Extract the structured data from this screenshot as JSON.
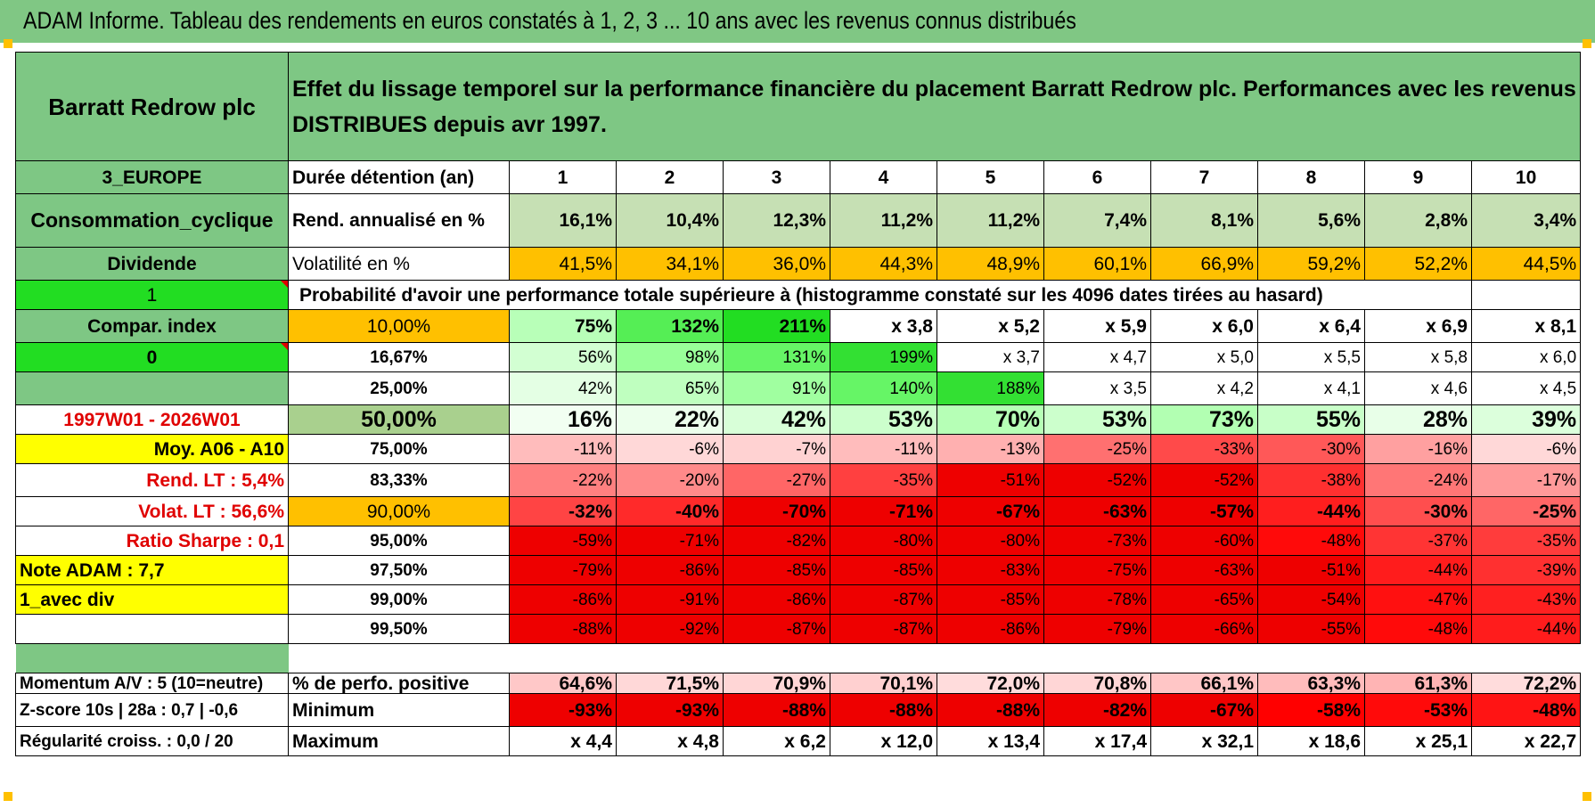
{
  "title": "ADAM Informe. Tableau des rendements en euros constatés à 1, 2, 3 ... 10 ans avec les revenus connus distribués",
  "header": {
    "name": "Barratt Redrow plc",
    "description": "Effet du lissage temporel sur la performance financière du placement Barratt Redrow plc. Performances avec les revenus DISTRIBUES depuis avr 1997."
  },
  "left": {
    "region": "3_EUROPE",
    "sector": "Consommation_cyclique",
    "dividend": "Dividende",
    "val1": "1",
    "compar": "Compar. index",
    "val0": "0",
    "period": "1997W01 - 2026W01",
    "moy": "Moy. A06 - A10",
    "rend_lt": "Rend. LT :   5,4%",
    "volat_lt": "Volat. LT :   56,6%",
    "sharpe": "Ratio Sharpe :   0,1",
    "note": "Note ADAM : 7,7",
    "avec_div": "1_avec div",
    "momentum": "Momentum A/V : 5 (10=neutre)",
    "zscore": "Z-score 10s | 28a : 0,7 | -0,6",
    "regularite": "Régularité croiss. : 0,0 / 20"
  },
  "labels": {
    "duree": "Durée détention (an)",
    "rend": "Rend. annualisé en %",
    "volat": "Volatilité en %",
    "proba": "Probabilité d'avoir une performance totale supérieure à (histogramme constaté sur les 4096 dates tirées au hasard)",
    "perf_pos": "% de perfo. positive",
    "minimum": "Minimum",
    "maximum": "Maximum"
  },
  "years": [
    "1",
    "2",
    "3",
    "4",
    "5",
    "6",
    "7",
    "8",
    "9",
    "10"
  ],
  "rend": [
    "16,1%",
    "10,4%",
    "12,3%",
    "11,2%",
    "11,2%",
    "7,4%",
    "8,1%",
    "5,6%",
    "2,8%",
    "3,4%"
  ],
  "volat": [
    "41,5%",
    "34,1%",
    "36,0%",
    "44,3%",
    "48,9%",
    "60,1%",
    "66,9%",
    "59,2%",
    "52,2%",
    "44,5%"
  ],
  "quantiles": [
    {
      "q": "10,00%",
      "v": [
        "75%",
        "132%",
        "211%",
        "x 3,8",
        "x 5,2",
        "x 5,9",
        "x 6,0",
        "x 6,4",
        "x 6,9",
        "x 8,1"
      ],
      "bg": [
        "#b8ffb8",
        "#55ee55",
        "#22dd22",
        "#ffffff",
        "#ffffff",
        "#ffffff",
        "#ffffff",
        "#ffffff",
        "#ffffff",
        "#ffffff"
      ]
    },
    {
      "q": "16,67%",
      "v": [
        "56%",
        "98%",
        "131%",
        "199%",
        "x 3,7",
        "x 4,7",
        "x 5,0",
        "x 5,5",
        "x 5,8",
        "x 6,0"
      ],
      "bg": [
        "#d2ffd2",
        "#99ff99",
        "#66f566",
        "#33e033",
        "#ffffff",
        "#ffffff",
        "#ffffff",
        "#ffffff",
        "#ffffff",
        "#ffffff"
      ]
    },
    {
      "q": "25,00%",
      "v": [
        "42%",
        "65%",
        "91%",
        "140%",
        "188%",
        "x 3,5",
        "x 4,2",
        "x 4,1",
        "x 4,6",
        "x 4,5"
      ],
      "bg": [
        "#e4ffe4",
        "#bfffbf",
        "#a0ffa0",
        "#66f566",
        "#33e033",
        "#ffffff",
        "#ffffff",
        "#ffffff",
        "#ffffff",
        "#ffffff"
      ]
    },
    {
      "q": "50,00%",
      "v": [
        "16%",
        "22%",
        "42%",
        "53%",
        "70%",
        "53%",
        "73%",
        "55%",
        "28%",
        "39%"
      ],
      "bg": [
        "#f2fff2",
        "#ecffec",
        "#d8ffd8",
        "#ccffcc",
        "#b6ffb6",
        "#ccffcc",
        "#b2ffb2",
        "#c8ffc8",
        "#e8ffe8",
        "#dcffdc"
      ]
    },
    {
      "q": "75,00%",
      "v": [
        "-11%",
        "-6%",
        "-7%",
        "-11%",
        "-13%",
        "-25%",
        "-33%",
        "-30%",
        "-16%",
        "-6%"
      ],
      "bg": [
        "#ffbcbc",
        "#ffd8d8",
        "#ffd2d2",
        "#ffbcbc",
        "#ffb0b0",
        "#ff7070",
        "#ff4a4a",
        "#ff5858",
        "#ffa0a0",
        "#ffd8d8"
      ]
    },
    {
      "q": "83,33%",
      "v": [
        "-22%",
        "-20%",
        "-27%",
        "-35%",
        "-51%",
        "-52%",
        "-52%",
        "-38%",
        "-24%",
        "-17%"
      ],
      "bg": [
        "#ff8080",
        "#ff8a8a",
        "#ff6666",
        "#ff4040",
        "#ee0000",
        "#ee0000",
        "#ee0000",
        "#ff3030",
        "#ff7676",
        "#ff9a9a"
      ]
    },
    {
      "q": "90,00%",
      "v": [
        "-32%",
        "-40%",
        "-70%",
        "-71%",
        "-67%",
        "-63%",
        "-57%",
        "-44%",
        "-30%",
        "-25%"
      ],
      "bg": [
        "#ff4444",
        "#ff2a2a",
        "#ee0000",
        "#ee0000",
        "#ee0000",
        "#ee0000",
        "#ee0000",
        "#ff1e1e",
        "#ff4e4e",
        "#ff6666"
      ]
    },
    {
      "q": "95,00%",
      "v": [
        "-59%",
        "-71%",
        "-82%",
        "-80%",
        "-80%",
        "-73%",
        "-60%",
        "-48%",
        "-37%",
        "-35%"
      ],
      "bg": [
        "#ee0000",
        "#ee0000",
        "#ee0000",
        "#ee0000",
        "#ee0000",
        "#ee0000",
        "#ee0000",
        "#ff0a0a",
        "#ff3434",
        "#ff3c3c"
      ]
    },
    {
      "q": "97,50%",
      "v": [
        "-79%",
        "-86%",
        "-85%",
        "-85%",
        "-83%",
        "-75%",
        "-63%",
        "-51%",
        "-44%",
        "-39%"
      ],
      "bg": [
        "#ee0000",
        "#ee0000",
        "#ee0000",
        "#ee0000",
        "#ee0000",
        "#ee0000",
        "#ee0000",
        "#ee0000",
        "#ff1c1c",
        "#ff3030"
      ]
    },
    {
      "q": "99,00%",
      "v": [
        "-86%",
        "-91%",
        "-86%",
        "-87%",
        "-85%",
        "-78%",
        "-65%",
        "-54%",
        "-47%",
        "-43%"
      ],
      "bg": [
        "#ee0000",
        "#ee0000",
        "#ee0000",
        "#ee0000",
        "#ee0000",
        "#ee0000",
        "#ee0000",
        "#ee0000",
        "#ff1010",
        "#ff2020"
      ]
    },
    {
      "q": "99,50%",
      "v": [
        "-88%",
        "-92%",
        "-87%",
        "-87%",
        "-86%",
        "-79%",
        "-66%",
        "-55%",
        "-48%",
        "-44%"
      ],
      "bg": [
        "#ee0000",
        "#ee0000",
        "#ee0000",
        "#ee0000",
        "#ee0000",
        "#ee0000",
        "#ee0000",
        "#ee0000",
        "#ff0a0a",
        "#ff1c1c"
      ]
    }
  ],
  "perf_pos": [
    "64,6%",
    "71,5%",
    "70,9%",
    "70,1%",
    "72,0%",
    "70,8%",
    "66,1%",
    "63,3%",
    "61,3%",
    "72,2%"
  ],
  "perf_pos_bg": [
    "#ffc8c8",
    "#ffd8d8",
    "#ffd6d6",
    "#ffd0d0",
    "#ffdcdc",
    "#ffd6d6",
    "#ffc6c6",
    "#ffbcbc",
    "#ffb4b4",
    "#ffdcdc"
  ],
  "minimum": [
    "-93%",
    "-93%",
    "-88%",
    "-88%",
    "-88%",
    "-82%",
    "-67%",
    "-58%",
    "-53%",
    "-48%"
  ],
  "minimum_bg": [
    "#ee0000",
    "#ee0000",
    "#ee0000",
    "#ee0000",
    "#ee0000",
    "#ee0000",
    "#ee0000",
    "#ff0000",
    "#ff0a0a",
    "#ff1414"
  ],
  "maximum": [
    "x 4,4",
    "x 4,8",
    "x 6,2",
    "x 12,0",
    "x 13,4",
    "x 17,4",
    "x 32,1",
    "x 18,6",
    "x 25,1",
    "x 22,7"
  ],
  "colors": {
    "title_bg": "#80c784",
    "header_bg": "#7ec784",
    "bright_green": "#22dd22",
    "orange": "#ffc000",
    "yellow": "#ffff00",
    "red_text": "#e00000"
  }
}
